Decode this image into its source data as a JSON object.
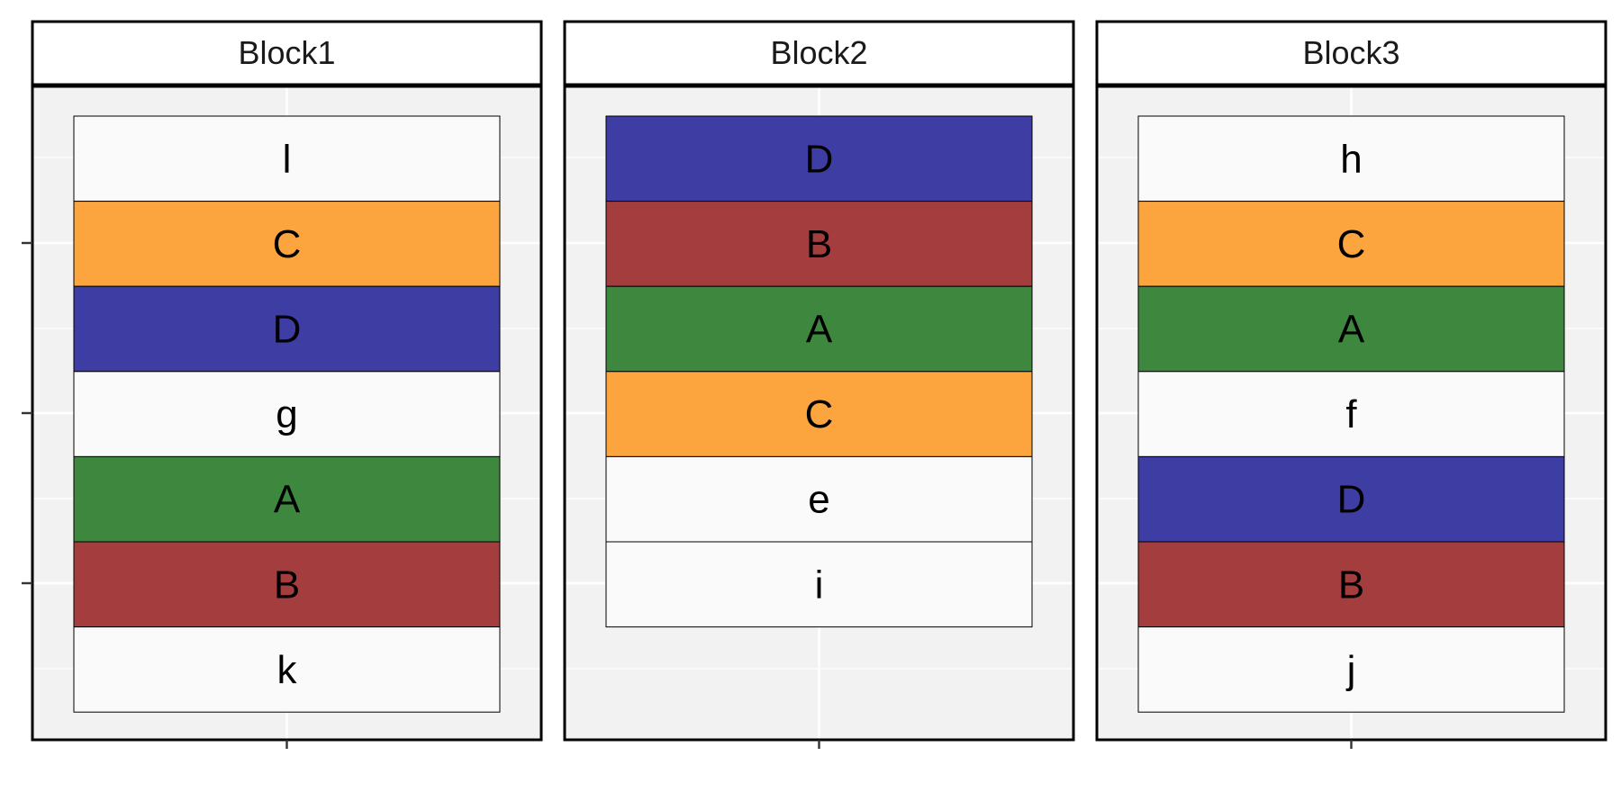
{
  "chart_data": {
    "type": "table",
    "description_note": "",
    "facets": [
      {
        "name": "Block1",
        "cells": [
          "l",
          "C",
          "D",
          "g",
          "A",
          "B",
          "k"
        ]
      },
      {
        "name": "Block2",
        "cells": [
          "D",
          "B",
          "A",
          "C",
          "e",
          "i"
        ]
      },
      {
        "name": "Block3",
        "cells": [
          "h",
          "C",
          "A",
          "f",
          "D",
          "B",
          "j"
        ]
      }
    ],
    "category_colors": {
      "A": "#3e873e",
      "B": "#a43d3d",
      "C": "#fca53f",
      "D": "#3d3da4",
      "other": "#fafafa"
    },
    "grid": true
  }
}
